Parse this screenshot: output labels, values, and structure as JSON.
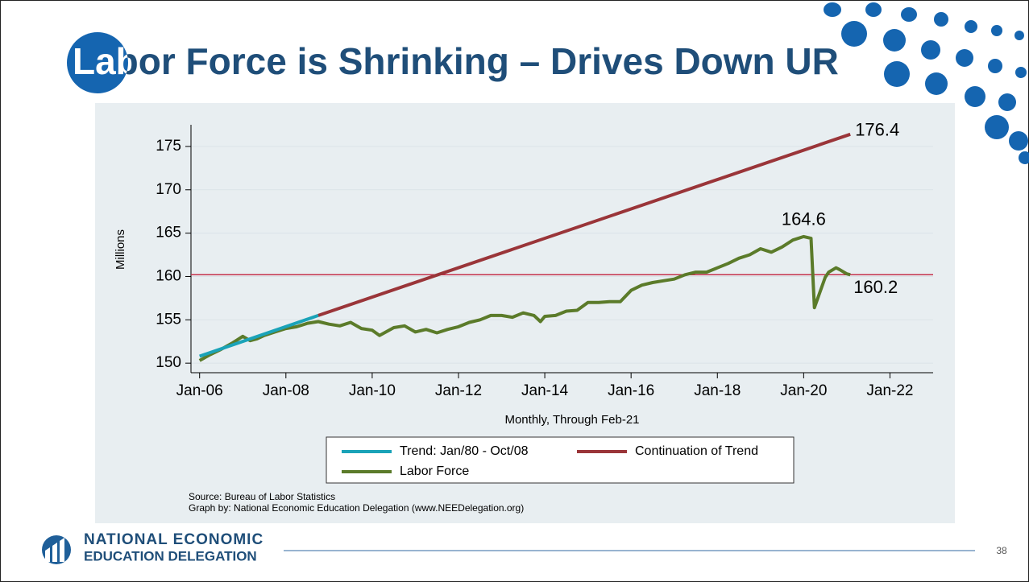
{
  "slide": {
    "title": "Labor Force is Shrinking – Drives Down UR",
    "page_number": "38",
    "logo": {
      "line1": "NATIONAL ECONOMIC",
      "line2": "EDUCATION DELEGATION"
    }
  },
  "chart_data": {
    "type": "line",
    "x_label": "Monthly, Through Feb-21",
    "y_label": "Millions",
    "source": "Source: Bureau of Labor Statistics",
    "credit": "Graph by: National Economic Education Delegation (www.NEEDelegation.org)",
    "xlim": [
      2005.8,
      2023.0
    ],
    "xticks": [
      {
        "value": 2006,
        "label": "Jan-06"
      },
      {
        "value": 2008,
        "label": "Jan-08"
      },
      {
        "value": 2010,
        "label": "Jan-10"
      },
      {
        "value": 2012,
        "label": "Jan-12"
      },
      {
        "value": 2014,
        "label": "Jan-14"
      },
      {
        "value": 2016,
        "label": "Jan-16"
      },
      {
        "value": 2018,
        "label": "Jan-18"
      },
      {
        "value": 2020,
        "label": "Jan-20"
      },
      {
        "value": 2022,
        "label": "Jan-22"
      }
    ],
    "ylim": [
      148.9,
      177.5
    ],
    "yticks": [
      150,
      155,
      160,
      165,
      170,
      175
    ],
    "grid": true,
    "series": [
      {
        "name": "Trend: Jan/80 - Oct/08",
        "color": "#1aa3b8",
        "x": [
          2006.0,
          2008.75
        ],
        "values": [
          150.8,
          155.5
        ]
      },
      {
        "name": "Continuation of Trend",
        "color": "#9a3539",
        "x": [
          2008.75,
          2021.08
        ],
        "values": [
          155.5,
          176.4
        ]
      },
      {
        "name": "Labor Force",
        "color": "#5b7b2a",
        "x": [
          2006.0,
          2006.25,
          2006.5,
          2006.75,
          2007.0,
          2007.17,
          2007.33,
          2007.5,
          2007.75,
          2008.0,
          2008.25,
          2008.5,
          2008.75,
          2009.0,
          2009.25,
          2009.5,
          2009.75,
          2010.0,
          2010.17,
          2010.5,
          2010.75,
          2011.0,
          2011.25,
          2011.5,
          2011.75,
          2012.0,
          2012.25,
          2012.5,
          2012.75,
          2013.0,
          2013.25,
          2013.5,
          2013.75,
          2013.9,
          2014.0,
          2014.25,
          2014.5,
          2014.75,
          2015.0,
          2015.25,
          2015.5,
          2015.75,
          2016.0,
          2016.25,
          2016.5,
          2016.75,
          2017.0,
          2017.25,
          2017.5,
          2017.75,
          2018.0,
          2018.25,
          2018.5,
          2018.75,
          2019.0,
          2019.25,
          2019.5,
          2019.75,
          2020.0,
          2020.17,
          2020.25,
          2020.5,
          2020.58,
          2020.75,
          2020.83,
          2021.0,
          2021.08
        ],
        "values": [
          150.3,
          151.0,
          151.6,
          152.3,
          153.1,
          152.6,
          152.8,
          153.2,
          153.6,
          154.0,
          154.2,
          154.6,
          154.8,
          154.5,
          154.3,
          154.7,
          154.0,
          153.8,
          153.2,
          154.1,
          154.3,
          153.6,
          153.9,
          153.5,
          153.9,
          154.2,
          154.7,
          155.0,
          155.5,
          155.5,
          155.3,
          155.8,
          155.5,
          154.8,
          155.4,
          155.5,
          156.0,
          156.1,
          157.0,
          157.0,
          157.1,
          157.1,
          158.4,
          159.0,
          159.3,
          159.5,
          159.7,
          160.2,
          160.5,
          160.5,
          161.0,
          161.5,
          162.1,
          162.5,
          163.2,
          162.8,
          163.4,
          164.2,
          164.6,
          164.4,
          156.4,
          159.9,
          160.5,
          161.0,
          160.8,
          160.3,
          160.2
        ]
      }
    ],
    "hline": {
      "value": 160.2,
      "color": "#c4314c"
    },
    "annotations": [
      {
        "label": "176.4",
        "x": 2021.08,
        "value": 176.4
      },
      {
        "label": "164.6",
        "x": 2020.0,
        "value": 164.6
      },
      {
        "label": "160.2",
        "x": 2021.08,
        "value": 160.2
      }
    ]
  }
}
